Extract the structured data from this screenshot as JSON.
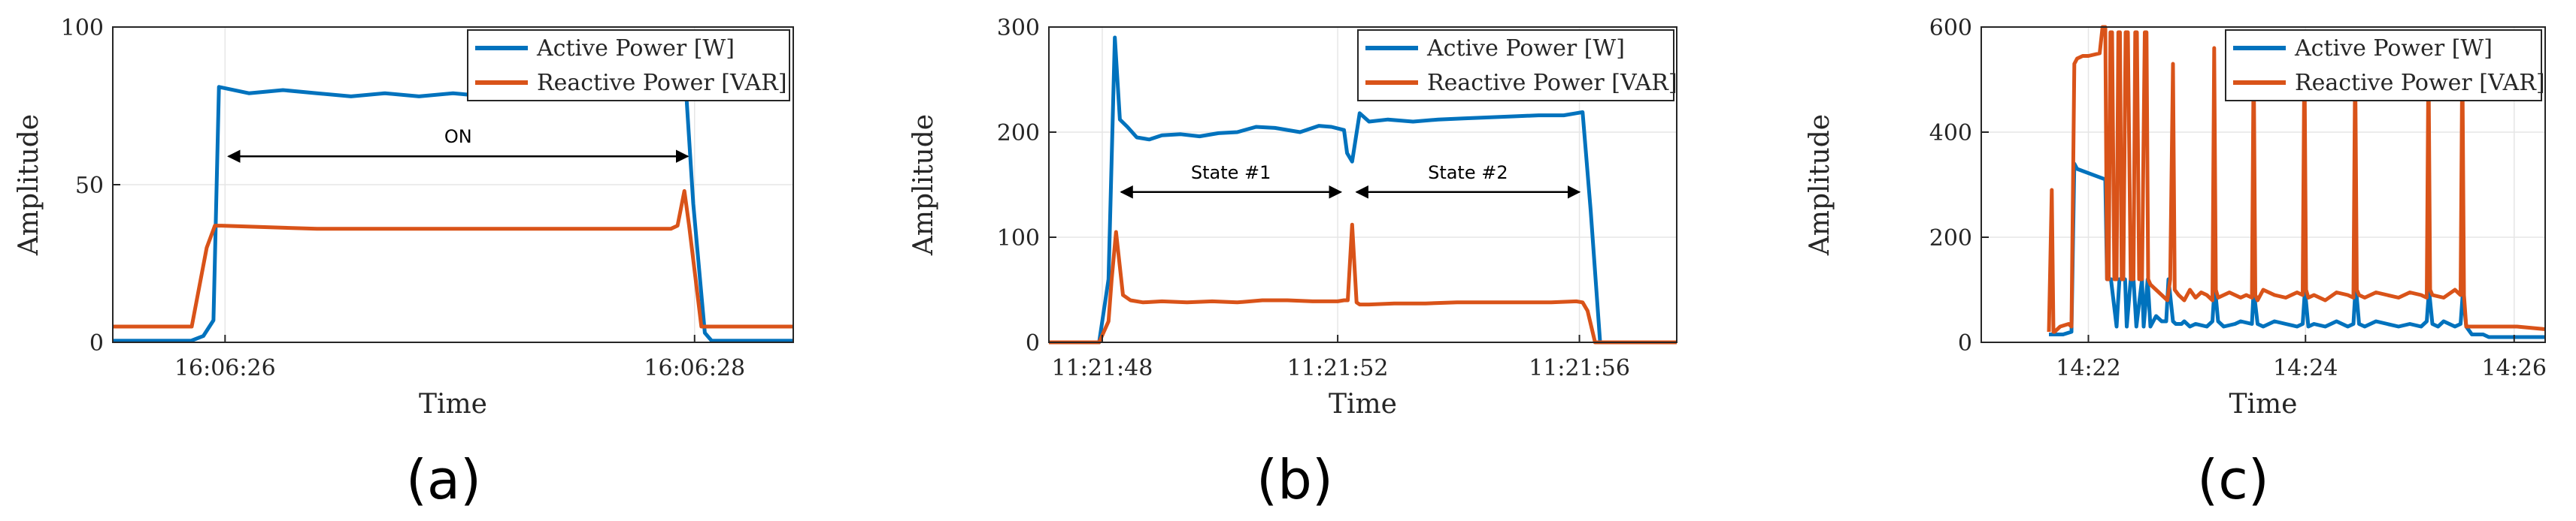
{
  "chart_data": [
    {
      "id": "a",
      "type": "line",
      "panel_label": "(a)",
      "xlabel": "Time",
      "ylabel": "Amplitude",
      "xlim": [
        0,
        100
      ],
      "ylim": [
        0,
        100
      ],
      "yticks": [
        0,
        50,
        100
      ],
      "ytick_labels": [
        "0",
        "50",
        "100"
      ],
      "xticks": [
        16.5,
        85.5
      ],
      "xtick_labels": [
        "16:06:26",
        "16:06:28"
      ],
      "grid": true,
      "legend": "top-right",
      "series": [
        {
          "name": "Active Power [W]",
          "color": "#0072BD",
          "x": [
            0,
            10,
            11.5,
            13.3,
            14.8,
            15.6,
            20,
            25,
            30,
            35,
            40,
            45,
            50,
            55,
            60,
            65,
            70,
            75,
            80,
            83,
            84.3,
            85.3,
            87,
            88,
            100
          ],
          "y": [
            0.5,
            0.5,
            0.5,
            2,
            7,
            81,
            79,
            80,
            79,
            78,
            79,
            78,
            79,
            78,
            78,
            79,
            78,
            79,
            78,
            78,
            78,
            44,
            3,
            0.5,
            0.5
          ]
        },
        {
          "name": "Reactive Power [VAR]",
          "color": "#D95319",
          "x": [
            0,
            10,
            11.6,
            13.8,
            15,
            16,
            30,
            50,
            70,
            82,
            83,
            84,
            84.7,
            86.5,
            87.5,
            88,
            100
          ],
          "y": [
            5,
            5,
            5,
            30,
            37,
            37,
            36,
            36,
            36,
            36,
            37,
            48,
            37,
            5,
            5,
            5,
            5
          ]
        }
      ],
      "annotations": [
        {
          "text": "ON",
          "x_from": 17,
          "x_to": 84.5,
          "y": 59
        }
      ]
    },
    {
      "id": "b",
      "type": "line",
      "panel_label": "(b)",
      "xlabel": "Time",
      "ylabel": "Amplitude",
      "xlim": [
        0,
        100
      ],
      "ylim": [
        0,
        300
      ],
      "yticks": [
        0,
        100,
        200,
        300
      ],
      "ytick_labels": [
        "0",
        "100",
        "200",
        "300"
      ],
      "xticks": [
        8.5,
        46,
        84.5
      ],
      "xtick_labels": [
        "11:21:48",
        "11:21:52",
        "11:21:56"
      ],
      "grid": true,
      "legend": "top-right",
      "series": [
        {
          "name": "Active Power [W]",
          "color": "#0072BD",
          "x": [
            0,
            5,
            6,
            8,
            9.5,
            10.5,
            11.3,
            12.5,
            14,
            16,
            18,
            21,
            24,
            27,
            30,
            33,
            36,
            40,
            43,
            45,
            47,
            47.5,
            48.3,
            49.5,
            51,
            54,
            58,
            62,
            66,
            70,
            74,
            78,
            82,
            84,
            85,
            86.3,
            87.8,
            89.5,
            100
          ],
          "y": [
            0,
            0,
            0,
            0,
            60,
            290,
            212,
            205,
            195,
            193,
            197,
            198,
            196,
            199,
            200,
            205,
            204,
            200,
            206,
            205,
            202,
            180,
            172,
            218,
            210,
            212,
            210,
            212,
            213,
            214,
            215,
            216,
            216,
            218,
            219,
            125,
            0,
            0,
            0
          ]
        },
        {
          "name": "Reactive Power [VAR]",
          "color": "#D95319",
          "x": [
            0,
            5,
            6,
            8,
            9.5,
            10,
            10.7,
            11.8,
            13,
            15,
            18,
            22,
            26,
            30,
            34,
            38,
            42,
            46,
            47,
            47.6,
            48.3,
            49,
            49.5,
            51,
            55,
            60,
            65,
            70,
            75,
            80,
            84,
            85,
            85.8,
            87,
            88.3,
            100
          ],
          "y": [
            0,
            0,
            0,
            0,
            20,
            60,
            105,
            45,
            40,
            38,
            39,
            38,
            39,
            38,
            40,
            40,
            39,
            39,
            40,
            40,
            112,
            38,
            36,
            36,
            37,
            37,
            38,
            38,
            38,
            38,
            39,
            38,
            30,
            0,
            0,
            0
          ]
        }
      ],
      "annotations": [
        {
          "text": "State #1",
          "x_from": 11.5,
          "x_to": 46.5,
          "y": 143
        },
        {
          "text": "State #2",
          "x_from": 49,
          "x_to": 84.5,
          "y": 143
        }
      ]
    },
    {
      "id": "c",
      "type": "line",
      "panel_label": "(c)",
      "xlabel": "Time",
      "ylabel": "Amplitude",
      "xlim": [
        0,
        100
      ],
      "ylim": [
        0,
        600
      ],
      "yticks": [
        0,
        200,
        400,
        600
      ],
      "ytick_labels": [
        "0",
        "200",
        "400",
        "600"
      ],
      "xticks": [
        19,
        57.5,
        94.5
      ],
      "xtick_labels": [
        "14:22",
        "14:24",
        "14:26"
      ],
      "grid": true,
      "legend": "top-right",
      "series": [
        {
          "name": "Active Power [W]",
          "color": "#0072BD",
          "x": [
            12,
            14.5,
            16,
            16.5,
            17,
            22,
            22.3,
            23,
            24,
            24.5,
            25.5,
            25.8,
            26.5,
            27,
            27.5,
            28.5,
            28.8,
            29.5,
            30,
            31,
            32,
            32.8,
            33.2,
            34,
            34.5,
            35.5,
            36,
            37,
            38,
            40,
            41,
            41.4,
            42,
            43,
            45,
            46,
            48,
            48.3,
            49,
            50,
            52,
            54,
            56,
            57,
            57.4,
            58,
            59,
            61,
            63,
            65,
            66,
            66.4,
            67,
            68,
            70,
            72,
            74,
            76,
            78,
            79,
            79.4,
            80,
            81,
            82,
            84,
            85,
            85.4,
            86,
            87,
            89,
            90,
            100
          ],
          "y": [
            15,
            15,
            20,
            340,
            330,
            310,
            120,
            120,
            30,
            120,
            120,
            30,
            120,
            120,
            30,
            120,
            30,
            120,
            30,
            50,
            40,
            40,
            120,
            40,
            35,
            35,
            40,
            30,
            35,
            30,
            40,
            110,
            40,
            30,
            35,
            40,
            35,
            100,
            35,
            30,
            40,
            35,
            30,
            35,
            100,
            30,
            35,
            30,
            40,
            30,
            35,
            110,
            35,
            30,
            40,
            35,
            30,
            35,
            30,
            40,
            100,
            35,
            30,
            40,
            30,
            35,
            95,
            30,
            15,
            15,
            10,
            10
          ]
        },
        {
          "name": "Reactive Power [VAR]",
          "color": "#D95319",
          "x": [
            12,
            12.5,
            12.8,
            13,
            14,
            15.5,
            16,
            16.5,
            17,
            18,
            19,
            21,
            21.5,
            22,
            22.3,
            22.6,
            22.9,
            23.2,
            23.6,
            24,
            24.3,
            24.6,
            24.9,
            25.2,
            25.6,
            26,
            26.5,
            27,
            27.3,
            27.6,
            28,
            28.5,
            29,
            29.3,
            29.6,
            30,
            31,
            32,
            33,
            33.5,
            34,
            34.3,
            35,
            36,
            37,
            38,
            39,
            40,
            41,
            41.3,
            41.6,
            42,
            43,
            44,
            46,
            47,
            48,
            48.3,
            48.6,
            49,
            50,
            52,
            54,
            56,
            57,
            57.3,
            57.6,
            58,
            59,
            61,
            63,
            65,
            66,
            66.3,
            66.6,
            67,
            68,
            70,
            72,
            74,
            76,
            78,
            79,
            79.3,
            79.6,
            80,
            82,
            84,
            85,
            85.3,
            85.6,
            86,
            87,
            90,
            95,
            100
          ],
          "y": [
            20,
            290,
            20,
            20,
            30,
            35,
            30,
            530,
            540,
            545,
            545,
            550,
            600,
            600,
            120,
            120,
            590,
            590,
            120,
            120,
            590,
            590,
            120,
            120,
            590,
            590,
            120,
            120,
            590,
            590,
            120,
            120,
            590,
            590,
            120,
            110,
            100,
            90,
            80,
            120,
            530,
            100,
            90,
            80,
            100,
            85,
            95,
            90,
            80,
            560,
            100,
            85,
            90,
            95,
            85,
            90,
            85,
            550,
            90,
            80,
            100,
            90,
            85,
            95,
            90,
            560,
            100,
            85,
            90,
            80,
            95,
            90,
            85,
            540,
            100,
            90,
            85,
            95,
            90,
            85,
            95,
            90,
            85,
            550,
            100,
            90,
            85,
            100,
            90,
            550,
            90,
            30,
            30,
            30,
            30,
            25
          ]
        }
      ],
      "annotations": []
    }
  ]
}
